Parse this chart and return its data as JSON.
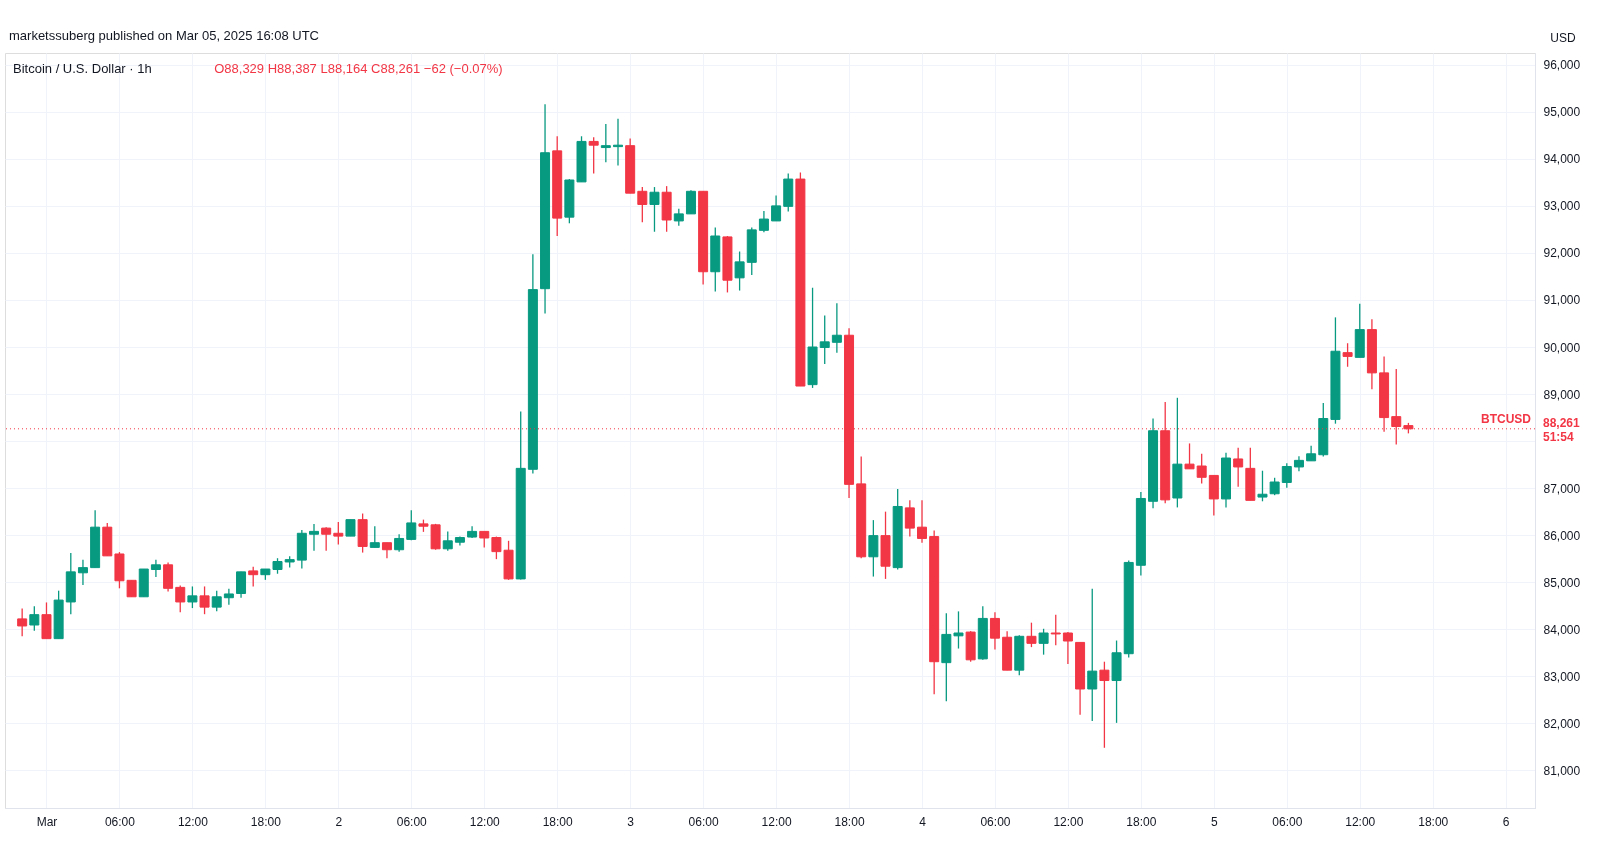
{
  "chart_data": {
    "type": "candlestick",
    "title": "Bitcoin / U.S. Dollar · 1h",
    "subtitle": "O88,329 H88,387 L88,164 C88,261 −62 (−0.07%)",
    "ylabel": "USD",
    "annotations": [
      "marketssuberg published on Mar 05, 2025 16:08 UTC",
      "88,261",
      "51:54"
    ],
    "x": [
      "2025-02-28T22:00",
      "2025-02-28T23:00",
      "2025-03-01T00:00",
      "2025-03-01T01:00",
      "2025-03-01T02:00",
      "2025-03-01T03:00",
      "2025-03-01T04:00",
      "2025-03-01T05:00",
      "2025-03-01T06:00",
      "2025-03-01T07:00",
      "2025-03-01T08:00",
      "2025-03-01T09:00",
      "2025-03-01T10:00",
      "2025-03-01T11:00",
      "2025-03-01T12:00",
      "2025-03-01T13:00",
      "2025-03-01T14:00",
      "2025-03-01T15:00",
      "2025-03-01T16:00",
      "2025-03-01T17:00",
      "2025-03-01T18:00",
      "2025-03-01T19:00",
      "2025-03-01T20:00",
      "2025-03-01T21:00",
      "2025-03-01T22:00",
      "2025-03-01T23:00",
      "2025-03-02T00:00",
      "2025-03-02T01:00",
      "2025-03-02T02:00",
      "2025-03-02T03:00",
      "2025-03-02T04:00",
      "2025-03-02T05:00",
      "2025-03-02T06:00",
      "2025-03-02T07:00",
      "2025-03-02T08:00",
      "2025-03-02T09:00",
      "2025-03-02T10:00",
      "2025-03-02T11:00",
      "2025-03-02T12:00",
      "2025-03-02T13:00",
      "2025-03-02T14:00",
      "2025-03-02T15:00",
      "2025-03-02T16:00",
      "2025-03-02T17:00",
      "2025-03-02T18:00",
      "2025-03-02T19:00",
      "2025-03-02T20:00",
      "2025-03-02T21:00",
      "2025-03-02T22:00",
      "2025-03-02T23:00",
      "2025-03-03T00:00",
      "2025-03-03T01:00",
      "2025-03-03T02:00",
      "2025-03-03T03:00",
      "2025-03-03T04:00",
      "2025-03-03T05:00",
      "2025-03-03T06:00",
      "2025-03-03T07:00",
      "2025-03-03T08:00",
      "2025-03-03T09:00",
      "2025-03-03T10:00",
      "2025-03-03T11:00",
      "2025-03-03T12:00",
      "2025-03-03T13:00",
      "2025-03-03T14:00",
      "2025-03-03T15:00",
      "2025-03-03T16:00",
      "2025-03-03T17:00",
      "2025-03-03T18:00",
      "2025-03-03T19:00",
      "2025-03-03T20:00",
      "2025-03-03T21:00",
      "2025-03-03T22:00",
      "2025-03-03T23:00",
      "2025-03-04T00:00",
      "2025-03-04T01:00",
      "2025-03-04T02:00",
      "2025-03-04T03:00",
      "2025-03-04T04:00",
      "2025-03-04T05:00",
      "2025-03-04T06:00",
      "2025-03-04T07:00",
      "2025-03-04T08:00",
      "2025-03-04T09:00",
      "2025-03-04T10:00",
      "2025-03-04T11:00",
      "2025-03-04T12:00",
      "2025-03-04T13:00",
      "2025-03-04T14:00",
      "2025-03-04T15:00",
      "2025-03-04T16:00",
      "2025-03-04T17:00",
      "2025-03-04T18:00",
      "2025-03-04T19:00",
      "2025-03-04T20:00",
      "2025-03-04T21:00",
      "2025-03-04T22:00",
      "2025-03-04T23:00",
      "2025-03-05T00:00",
      "2025-03-05T01:00",
      "2025-03-05T02:00",
      "2025-03-05T03:00",
      "2025-03-05T04:00",
      "2025-03-05T05:00",
      "2025-03-05T06:00",
      "2025-03-05T07:00",
      "2025-03-05T08:00",
      "2025-03-05T09:00",
      "2025-03-05T10:00",
      "2025-03-05T11:00",
      "2025-03-05T12:00",
      "2025-03-05T13:00",
      "2025-03-05T14:00",
      "2025-03-05T15:00",
      "2025-03-05T16:00"
    ],
    "ohlc": [
      [
        84220,
        84440,
        83850,
        84070
      ],
      [
        84090,
        84490,
        83970,
        84310
      ],
      [
        84310,
        84570,
        83800,
        83800
      ],
      [
        83800,
        84820,
        83800,
        84620
      ],
      [
        84580,
        85620,
        84320,
        85220
      ],
      [
        85200,
        85480,
        84940,
        85310
      ],
      [
        85310,
        86530,
        85310,
        86170
      ],
      [
        86170,
        86260,
        85560,
        85560
      ],
      [
        85600,
        85640,
        84870,
        85030
      ],
      [
        85040,
        85040,
        84690,
        84690
      ],
      [
        84690,
        85280,
        84690,
        85280
      ],
      [
        85270,
        85480,
        85110,
        85370
      ],
      [
        85370,
        85420,
        84800,
        84870
      ],
      [
        84890,
        84930,
        84360,
        84580
      ],
      [
        84580,
        84910,
        84450,
        84710
      ],
      [
        84710,
        84910,
        84320,
        84470
      ],
      [
        84470,
        84820,
        84380,
        84690
      ],
      [
        84670,
        84860,
        84520,
        84750
      ],
      [
        84760,
        85220,
        84670,
        85220
      ],
      [
        85240,
        85330,
        84910,
        85160
      ],
      [
        85160,
        85280,
        85050,
        85280
      ],
      [
        85270,
        85510,
        85180,
        85440
      ],
      [
        85430,
        85550,
        85310,
        85480
      ],
      [
        85470,
        86110,
        85290,
        86040
      ],
      [
        86020,
        86240,
        85670,
        86080
      ],
      [
        86150,
        86170,
        85670,
        86020
      ],
      [
        86040,
        86280,
        85800,
        85980
      ],
      [
        85980,
        86330,
        85980,
        86330
      ],
      [
        86330,
        86460,
        85630,
        85760
      ],
      [
        85740,
        86190,
        85740,
        85840
      ],
      [
        85840,
        85840,
        85510,
        85690
      ],
      [
        85690,
        86020,
        85650,
        85930
      ],
      [
        85910,
        86530,
        85890,
        86260
      ],
      [
        86240,
        86330,
        86070,
        86190
      ],
      [
        86220,
        86240,
        85690,
        85710
      ],
      [
        85710,
        86080,
        85670,
        85880
      ],
      [
        85850,
        85970,
        85780,
        85950
      ],
      [
        85960,
        86190,
        85940,
        86080
      ],
      [
        86080,
        86080,
        85740,
        85940
      ],
      [
        85950,
        85970,
        85490,
        85650
      ],
      [
        85680,
        85880,
        85050,
        85070
      ],
      [
        85070,
        88630,
        85060,
        87420
      ],
      [
        87400,
        91970,
        87310,
        91220
      ],
      [
        91240,
        95160,
        90710,
        94130
      ],
      [
        94170,
        94480,
        92360,
        92740
      ],
      [
        92760,
        93570,
        92630,
        93550
      ],
      [
        93510,
        94480,
        93510,
        94370
      ],
      [
        94370,
        94460,
        93690,
        94290
      ],
      [
        94240,
        94740,
        93930,
        94280
      ],
      [
        94260,
        94850,
        93860,
        94290
      ],
      [
        94280,
        94430,
        93270,
        93270
      ],
      [
        93310,
        93400,
        92650,
        93030
      ],
      [
        93030,
        93400,
        92450,
        93290
      ],
      [
        93290,
        93420,
        92450,
        92700
      ],
      [
        92680,
        92940,
        92580,
        92830
      ],
      [
        92830,
        93330,
        92830,
        93310
      ],
      [
        93310,
        93310,
        91330,
        91600
      ],
      [
        91600,
        92540,
        91180,
        92360
      ],
      [
        92340,
        92360,
        91160,
        91420
      ],
      [
        91470,
        92030,
        91200,
        91810
      ],
      [
        91800,
        92540,
        91530,
        92490
      ],
      [
        92480,
        92890,
        92440,
        92720
      ],
      [
        92680,
        93220,
        92680,
        93000
      ],
      [
        92990,
        93690,
        92880,
        93570
      ],
      [
        93570,
        93710,
        89170,
        89170
      ],
      [
        89200,
        91260,
        89130,
        90000
      ],
      [
        89990,
        90670,
        89640,
        90110
      ],
      [
        90100,
        90930,
        89880,
        90250
      ],
      [
        90250,
        90400,
        86790,
        87080
      ],
      [
        87090,
        87670,
        85510,
        85540
      ],
      [
        85540,
        86320,
        85120,
        85990
      ],
      [
        85990,
        86500,
        85070,
        85340
      ],
      [
        85310,
        86980,
        85270,
        86610
      ],
      [
        86580,
        86740,
        85970,
        86150
      ],
      [
        86170,
        86740,
        85840,
        85930
      ],
      [
        85970,
        86100,
        82620,
        83310
      ],
      [
        83290,
        84340,
        82470,
        83890
      ],
      [
        83860,
        84380,
        83590,
        83920
      ],
      [
        83940,
        83960,
        83310,
        83350
      ],
      [
        83370,
        84490,
        83350,
        84230
      ],
      [
        84230,
        84360,
        83570,
        83810
      ],
      [
        83830,
        83960,
        83130,
        83130
      ],
      [
        83130,
        83870,
        83020,
        83850
      ],
      [
        83850,
        84140,
        83620,
        83700
      ],
      [
        83700,
        84010,
        83460,
        83920
      ],
      [
        83920,
        84310,
        83660,
        83900
      ],
      [
        83920,
        83940,
        83260,
        83750
      ],
      [
        83720,
        83720,
        82180,
        82730
      ],
      [
        82730,
        84860,
        82050,
        83110
      ],
      [
        83130,
        83310,
        81480,
        82910
      ],
      [
        82910,
        83760,
        82010,
        83500
      ],
      [
        83480,
        85460,
        83400,
        85420
      ],
      [
        85360,
        86920,
        85140,
        86780
      ],
      [
        86720,
        88480,
        86570,
        88220
      ],
      [
        88220,
        88830,
        86680,
        86750
      ],
      [
        86790,
        88920,
        86590,
        87510
      ],
      [
        87510,
        87950,
        87410,
        87410
      ],
      [
        87470,
        87730,
        87100,
        87230
      ],
      [
        87270,
        87270,
        86420,
        86770
      ],
      [
        86770,
        87750,
        86590,
        87640
      ],
      [
        87620,
        87860,
        87030,
        87450
      ],
      [
        87420,
        87860,
        86740,
        86740
      ],
      [
        86810,
        87370,
        86720,
        86870
      ],
      [
        86880,
        87220,
        86850,
        87130
      ],
      [
        87120,
        87530,
        87010,
        87460
      ],
      [
        87450,
        87680,
        87360,
        87590
      ],
      [
        87580,
        87900,
        87580,
        87730
      ],
      [
        87710,
        88810,
        87670,
        88480
      ],
      [
        88460,
        90630,
        88370,
        89910
      ],
      [
        89880,
        90080,
        89580,
        89800
      ],
      [
        89780,
        90920,
        89780,
        90370
      ],
      [
        90370,
        90590,
        89100,
        89450
      ],
      [
        89450,
        89800,
        88200,
        88500
      ],
      [
        88520,
        89530,
        87930,
        88310
      ],
      [
        88329,
        88387,
        88164,
        88261
      ]
    ],
    "colors": [
      "#f23645",
      "#089981",
      "#f23645",
      "#089981",
      "#089981",
      "#089981",
      "#089981",
      "#f23645",
      "#f23645",
      "#f23645",
      "#089981",
      "#089981",
      "#f23645",
      "#f23645",
      "#089981",
      "#f23645",
      "#089981",
      "#089981",
      "#089981",
      "#f23645",
      "#089981",
      "#089981",
      "#089981",
      "#089981",
      "#089981",
      "#f23645",
      "#f23645",
      "#089981",
      "#f23645",
      "#089981",
      "#f23645",
      "#089981",
      "#089981",
      "#f23645",
      "#f23645",
      "#089981",
      "#089981",
      "#089981",
      "#f23645",
      "#f23645",
      "#f23645",
      "#089981",
      "#089981",
      "#089981",
      "#f23645",
      "#089981",
      "#089981",
      "#f23645",
      "#089981",
      "#089981",
      "#f23645",
      "#f23645",
      "#089981",
      "#f23645",
      "#089981",
      "#089981",
      "#f23645",
      "#089981",
      "#f23645",
      "#089981",
      "#089981",
      "#089981",
      "#089981",
      "#089981",
      "#f23645",
      "#089981",
      "#089981",
      "#089981",
      "#f23645",
      "#f23645",
      "#089981",
      "#f23645",
      "#089981",
      "#f23645",
      "#f23645",
      "#f23645",
      "#089981",
      "#089981",
      "#f23645",
      "#089981",
      "#f23645",
      "#f23645",
      "#089981",
      "#f23645",
      "#089981",
      "#f23645",
      "#f23645",
      "#f23645",
      "#089981",
      "#f23645",
      "#089981",
      "#089981",
      "#089981",
      "#089981",
      "#f23645",
      "#089981",
      "#f23645",
      "#f23645",
      "#f23645",
      "#089981",
      "#f23645",
      "#f23645",
      "#089981",
      "#089981",
      "#089981",
      "#089981",
      "#089981",
      "#089981",
      "#089981",
      "#f23645",
      "#089981",
      "#f23645",
      "#f23645",
      "#f23645",
      "#f23645"
    ],
    "xlim": [
      "2025-02-28T21:00",
      "2025-03-06T02:00"
    ],
    "xticks": [
      {
        "value": "2025-03-01T00:00",
        "label": "Mar"
      },
      {
        "value": "2025-03-01T06:00",
        "label": "06:00"
      },
      {
        "value": "2025-03-01T12:00",
        "label": "12:00"
      },
      {
        "value": "2025-03-01T18:00",
        "label": "18:00"
      },
      {
        "value": "2025-03-02T00:00",
        "label": "2"
      },
      {
        "value": "2025-03-02T06:00",
        "label": "06:00"
      },
      {
        "value": "2025-03-02T12:00",
        "label": "12:00"
      },
      {
        "value": "2025-03-02T18:00",
        "label": "18:00"
      },
      {
        "value": "2025-03-03T00:00",
        "label": "3"
      },
      {
        "value": "2025-03-03T06:00",
        "label": "06:00"
      },
      {
        "value": "2025-03-03T12:00",
        "label": "12:00"
      },
      {
        "value": "2025-03-03T18:00",
        "label": "18:00"
      },
      {
        "value": "2025-03-04T00:00",
        "label": "4"
      },
      {
        "value": "2025-03-04T06:00",
        "label": "06:00"
      },
      {
        "value": "2025-03-04T12:00",
        "label": "12:00"
      },
      {
        "value": "2025-03-04T18:00",
        "label": "18:00"
      },
      {
        "value": "2025-03-05T00:00",
        "label": "5"
      },
      {
        "value": "2025-03-05T06:00",
        "label": "06:00"
      },
      {
        "value": "2025-03-05T12:00",
        "label": "12:00"
      },
      {
        "value": "2025-03-05T18:00",
        "label": "18:00"
      },
      {
        "value": "2025-03-06T00:00",
        "label": "6"
      }
    ],
    "ylim": [
      80200,
      96250
    ],
    "yticks": [
      {
        "value": 81000,
        "label": "81,000"
      },
      {
        "value": 82000,
        "label": "82,000"
      },
      {
        "value": 83000,
        "label": "83,000"
      },
      {
        "value": 84000,
        "label": "84,000"
      },
      {
        "value": 85000,
        "label": "85,000"
      },
      {
        "value": 86000,
        "label": "86,000"
      },
      {
        "value": 87000,
        "label": "87,000"
      },
      {
        "value": 88000,
        "label": null
      },
      {
        "value": 89000,
        "label": "89,000"
      },
      {
        "value": 90000,
        "label": "90,000"
      },
      {
        "value": 91000,
        "label": "91,000"
      },
      {
        "value": 92000,
        "label": "92,000"
      },
      {
        "value": 93000,
        "label": "93,000"
      },
      {
        "value": 94000,
        "label": "94,000"
      },
      {
        "value": 95000,
        "label": "95,000"
      },
      {
        "value": 96000,
        "label": "96,000"
      }
    ],
    "ref_lines": [
      {
        "axis": "y",
        "value": 88261,
        "label": "BTCUSD",
        "color": "#f23645",
        "line_style": "dotted"
      }
    ],
    "grid": true
  }
}
